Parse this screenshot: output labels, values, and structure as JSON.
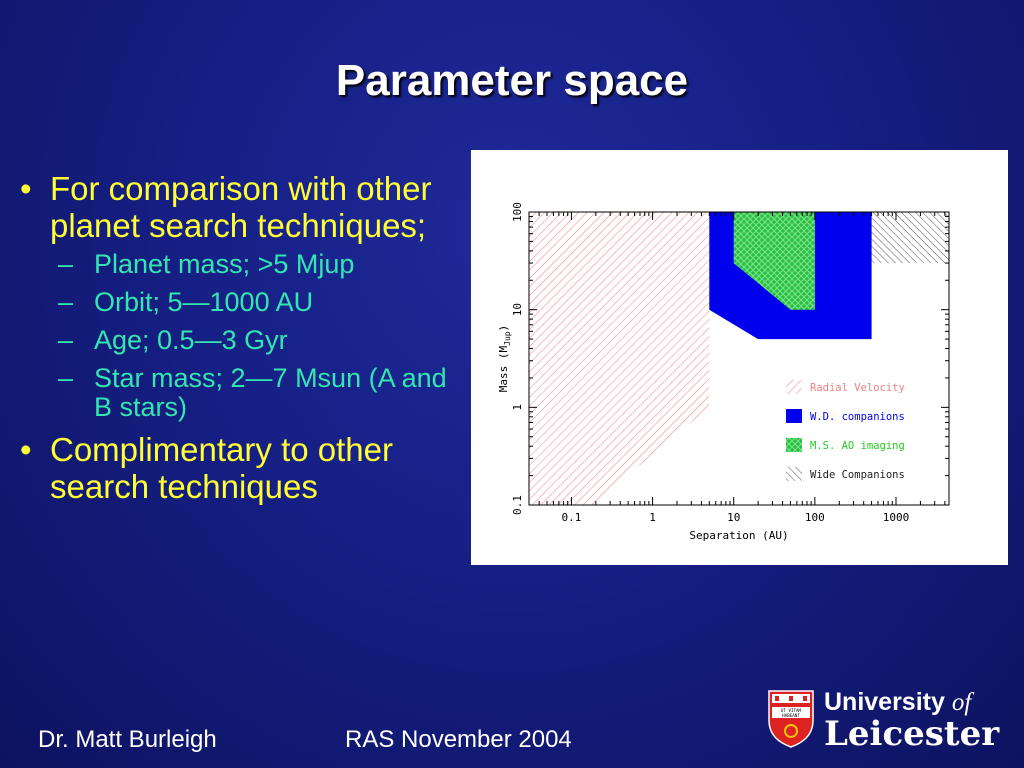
{
  "slide": {
    "title": "Parameter space",
    "bullets": [
      {
        "text": "For comparison with other planet search techniques;",
        "subs": [
          "Planet mass; >5 Mjup",
          "Orbit; 5—1000 AU",
          "Age; 0.5—3 Gyr",
          "Star mass; 2—7 Msun (A and B stars)"
        ]
      },
      {
        "text": "Complimentary to other search techniques",
        "subs": []
      }
    ],
    "bullet_char": "•",
    "dash_char": "–"
  },
  "footer": {
    "author": "Dr. Matt Burleigh",
    "event": "RAS November 2004",
    "logo_line1": "University",
    "logo_of": "of",
    "logo_line2": "Leicester",
    "shield_text_top": "UT VITAM",
    "shield_text_bottom": "HABEANT"
  },
  "chart_data": {
    "type": "area",
    "xlabel": "Separation (AU)",
    "ylabel": "Mass (M",
    "ylabel_sub": "Jup",
    "ylabel_end": ")",
    "x_scale": "log",
    "y_scale": "log",
    "xlim": [
      0.03,
      4500
    ],
    "ylim": [
      0.1,
      100
    ],
    "x_ticks": [
      0.1,
      1,
      10,
      100,
      1000
    ],
    "x_tick_labels": [
      "0.1",
      "1",
      "10",
      "100",
      "1000"
    ],
    "y_ticks": [
      0.1,
      1,
      10,
      100
    ],
    "y_tick_labels": [
      "0.1",
      "1",
      "10",
      "100"
    ],
    "legend_position": "lower-right",
    "series": [
      {
        "name": "Radial Velocity",
        "style": "hatch",
        "color": "#f08080",
        "polygon": [
          [
            0.03,
            100
          ],
          [
            5,
            100
          ],
          [
            5,
            1
          ],
          [
            0.18,
            0.1
          ],
          [
            0.03,
            0.1
          ]
        ]
      },
      {
        "name": "W.D. companions",
        "style": "solid",
        "color": "#0000ee",
        "polygon": [
          [
            5,
            100
          ],
          [
            500,
            100
          ],
          [
            500,
            5
          ],
          [
            20,
            5
          ],
          [
            5,
            10
          ]
        ]
      },
      {
        "name": "M.S. AO imaging",
        "style": "crosshatch",
        "color": "#22cc22",
        "polygon": [
          [
            10,
            100
          ],
          [
            100,
            100
          ],
          [
            100,
            10
          ],
          [
            50,
            10
          ],
          [
            10,
            30
          ]
        ]
      },
      {
        "name": "Wide Companions",
        "style": "hatch",
        "color": "#555555",
        "polygon": [
          [
            500,
            100
          ],
          [
            4500,
            100
          ],
          [
            4500,
            30
          ],
          [
            500,
            30
          ]
        ]
      }
    ]
  }
}
